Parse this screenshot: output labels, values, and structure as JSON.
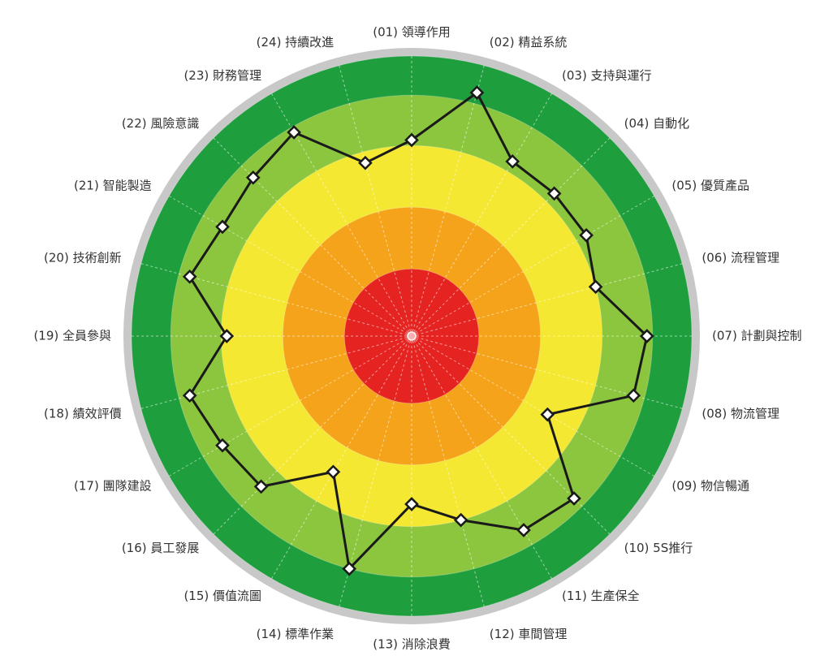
{
  "colors": {
    "outer_rim": "#c8c8c8",
    "band_outer": "#1f9e3e",
    "band_light_green": "#8cc63f",
    "band_yellow": "#f4e832",
    "band_orange": "#f5a31a",
    "band_red": "#e52421",
    "series_line": "#1a1a1a",
    "grid_line": "#ffffff"
  },
  "chart_data": {
    "type": "radar",
    "title": "",
    "categories": [
      "(01) 領導作用",
      "(02) 精益系統",
      "(03) 支持與運行",
      "(04) 自動化",
      "(05) 優質產品",
      "(06) 流程管理",
      "(07) 計劃與控制",
      "(08) 物流管理",
      "(09) 物信暢通",
      "(10) 5S推行",
      "(11) 生產保全",
      "(12) 車間管理",
      "(13) 消除浪費",
      "(14) 標準作業",
      "(15) 價值流圖",
      "(16) 員工發展",
      "(17) 團隊建設",
      "(18) 績效評價",
      "(19) 全員參與",
      "(20) 技術創新",
      "(21) 智能製造",
      "(22) 風險意識",
      "(23) 財務管理",
      "(24) 持續改進"
    ],
    "rlim": [
      0,
      5
    ],
    "bands": [
      {
        "from": 0,
        "to": 1.2,
        "color": "#e52421"
      },
      {
        "from": 1.2,
        "to": 2.3,
        "color": "#f5a31a"
      },
      {
        "from": 2.3,
        "to": 3.4,
        "color": "#f4e832"
      },
      {
        "from": 3.4,
        "to": 4.3,
        "color": "#8cc63f"
      },
      {
        "from": 4.3,
        "to": 5.0,
        "color": "#1f9e3e"
      }
    ],
    "series": [
      {
        "values": [
          3.5,
          4.5,
          3.6,
          3.6,
          3.6,
          3.4,
          4.2,
          4.1,
          2.8,
          4.1,
          4.0,
          3.4,
          3.0,
          4.3,
          2.8,
          3.8,
          3.9,
          4.1,
          3.3,
          4.1,
          3.9,
          4.0,
          4.2,
          3.2
        ]
      }
    ]
  }
}
